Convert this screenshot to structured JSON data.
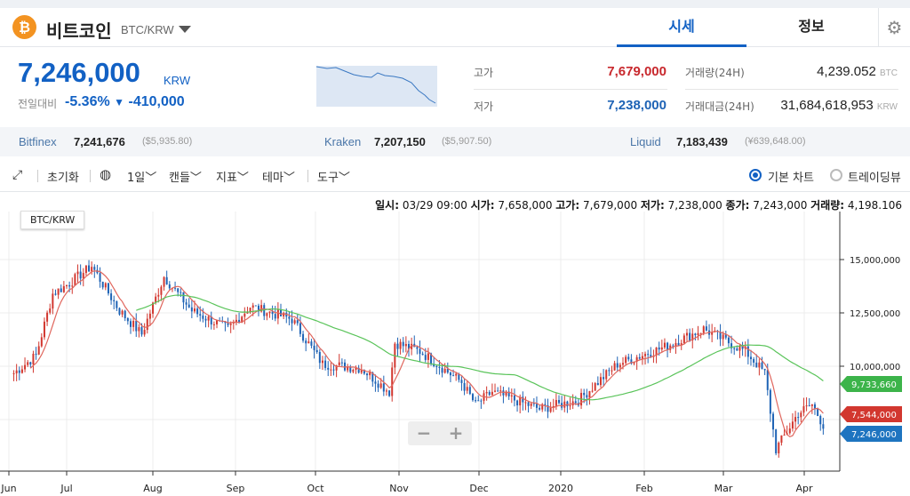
{
  "header": {
    "coin_name": "비트코인",
    "pair": "BTC/KRW",
    "coin_symbol": "₿",
    "tabs": [
      "시세",
      "정보"
    ],
    "gear": "gear-icon"
  },
  "price": {
    "value": "7,246,000",
    "unit": "KRW",
    "change_label": "전일대비",
    "change_pct": "-5.36%",
    "change_arrow": "▼",
    "change_abs": "-410,000"
  },
  "stats": {
    "high_label": "고가",
    "high": "7,679,000",
    "low_label": "저가",
    "low": "7,238,000",
    "vol_label": "거래량(24H)",
    "vol": "4,239.052",
    "vol_unit": "BTC",
    "amt_label": "거래대금(24H)",
    "amt": "31,684,618,953",
    "amt_unit": "KRW"
  },
  "exchanges": [
    {
      "name": "Bitfinex",
      "price": "7,241,676",
      "sub": "($5,935.80)"
    },
    {
      "name": "Kraken",
      "price": "7,207,150",
      "sub": "($5,907.50)"
    },
    {
      "name": "Liquid",
      "price": "7,183,439",
      "sub": "(¥639,648.00)"
    }
  ],
  "toolbar": {
    "reset": "초기화",
    "interval": "1일",
    "candle": "캔들",
    "indicator": "지표",
    "theme": "테마",
    "tools": "도구",
    "basic_chart": "기본 차트",
    "tradingview": "트레이딩뷰"
  },
  "ohlc": {
    "date_l": "일시:",
    "date": "03/29 09:00",
    "open_l": "시가:",
    "open": "7,658,000",
    "high_l": "고가:",
    "high": "7,679,000",
    "low_l": "저가:",
    "low": "7,238,000",
    "close_l": "종가:",
    "close": "7,243,000",
    "vol_l": "거래량:",
    "vol": "4,198.106"
  },
  "colors": {
    "up": "#d2372f",
    "down": "#1e63b5",
    "ma_short": "#e0675e",
    "ma_long": "#5ac45a"
  },
  "chart_data": {
    "type": "candlestick",
    "title": "BTC/KRW",
    "x_ticks": [
      "Jun",
      "Jul",
      "Aug",
      "Sep",
      "Oct",
      "Nov",
      "Dec",
      "2020",
      "Feb",
      "Mar",
      "Apr"
    ],
    "y_ticks": [
      "15,000,000",
      "12,500,000",
      "10,000,000"
    ],
    "ylim": [
      4500000,
      17000000
    ],
    "key_closes": [
      [
        "2019-06-12",
        9.67
      ],
      [
        "2019-06-20",
        10.5
      ],
      [
        "2019-06-26",
        13.4
      ],
      [
        "2019-07-01",
        13.8
      ],
      [
        "2019-07-10",
        14.7
      ],
      [
        "2019-07-20",
        12.6
      ],
      [
        "2019-07-28",
        11.5
      ],
      [
        "2019-08-05",
        14.2
      ],
      [
        "2019-08-15",
        12.6
      ],
      [
        "2019-08-28",
        11.75
      ],
      [
        "2019-09-05",
        12.8
      ],
      [
        "2019-09-20",
        12.2
      ],
      [
        "2019-10-01",
        10.1
      ],
      [
        "2019-10-15",
        9.9
      ],
      [
        "2019-10-25",
        8.8
      ],
      [
        "2019-10-27",
        11.1
      ],
      [
        "2019-11-05",
        10.7
      ],
      [
        "2019-11-20",
        9.25
      ],
      [
        "2019-11-25",
        8.2
      ],
      [
        "2019-12-01",
        8.8
      ],
      [
        "2019-12-18",
        8.0
      ],
      [
        "2020-01-01",
        8.4
      ],
      [
        "2020-01-15",
        10.1
      ],
      [
        "2020-02-01",
        10.9
      ],
      [
        "2020-02-15",
        11.75
      ],
      [
        "2020-03-01",
        10.7
      ],
      [
        "2020-03-08",
        9.67
      ],
      [
        "2020-03-12",
        6.1
      ],
      [
        "2020-03-20",
        7.8
      ],
      [
        "2020-03-25",
        8.2
      ],
      [
        "2020-03-29",
        7.25
      ]
    ],
    "price_unit": "million KRW",
    "labels": {
      "ma_long": "9,733,660",
      "ma_short": "7,544,000",
      "last": "7,246,000"
    },
    "zoom_minus": "−",
    "zoom_plus": "+"
  }
}
